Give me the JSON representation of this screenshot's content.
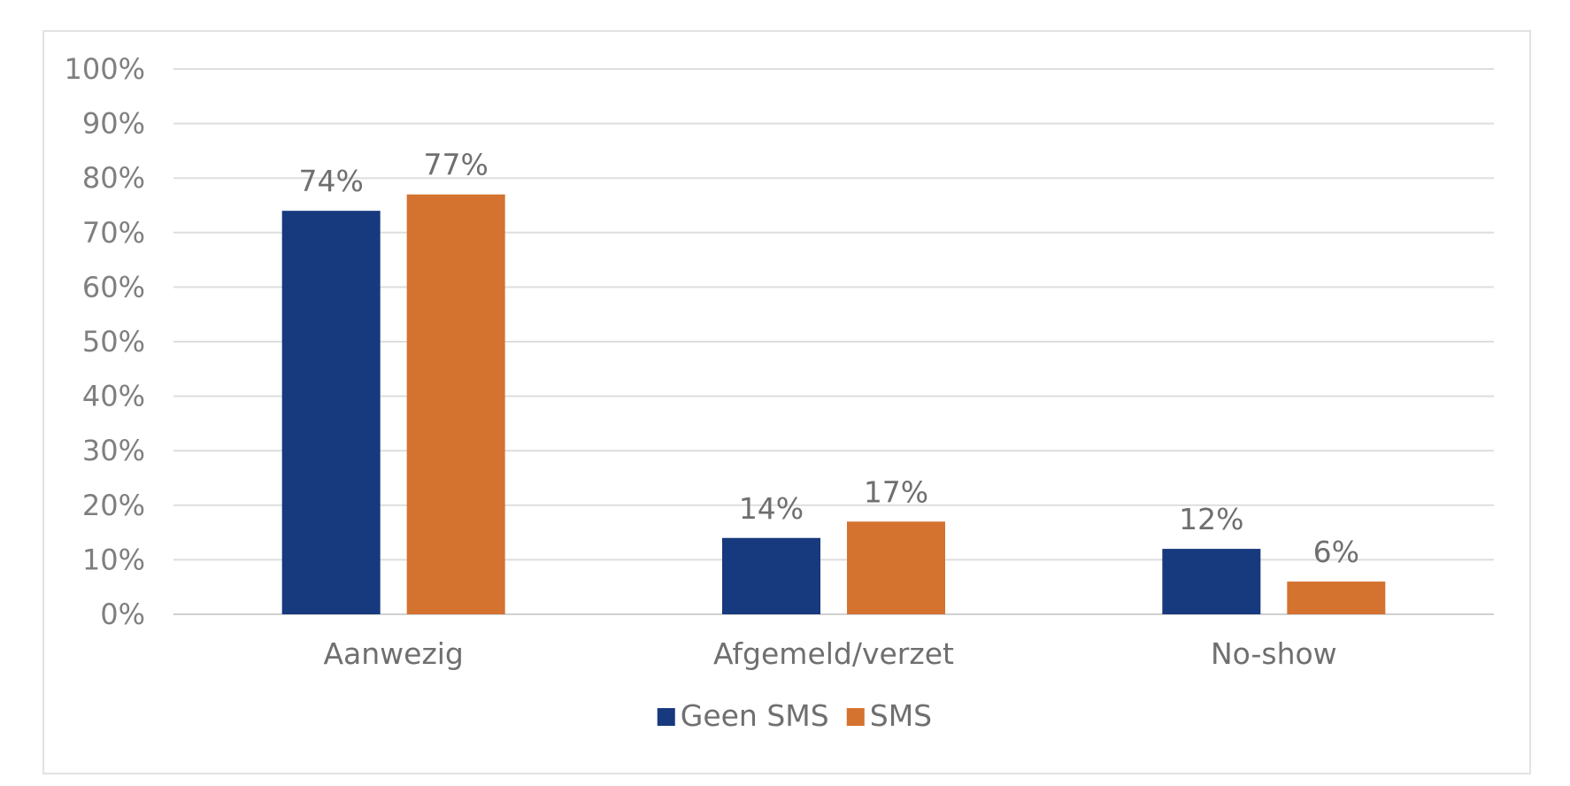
{
  "chart_data": {
    "type": "bar",
    "categories": [
      "Aanwezig",
      "Afgemeld/verzet",
      "No-show"
    ],
    "series": [
      {
        "name": "Geen SMS",
        "values": [
          74,
          14,
          12
        ],
        "labels": [
          "74%",
          "14%",
          "12%"
        ],
        "color": "#17397d"
      },
      {
        "name": "SMS",
        "values": [
          77,
          17,
          6
        ],
        "labels": [
          "77%",
          "17%",
          "6%"
        ],
        "color": "#d4722f"
      }
    ],
    "ylim": [
      0,
      100
    ],
    "yticks": [
      0,
      10,
      20,
      30,
      40,
      50,
      60,
      70,
      80,
      90,
      100
    ],
    "ytick_labels": [
      "0%",
      "10%",
      "20%",
      "30%",
      "40%",
      "50%",
      "60%",
      "70%",
      "80%",
      "90%",
      "100%"
    ],
    "grid": true,
    "legend": "bottom-center",
    "title": "",
    "xlabel": "",
    "ylabel": ""
  }
}
